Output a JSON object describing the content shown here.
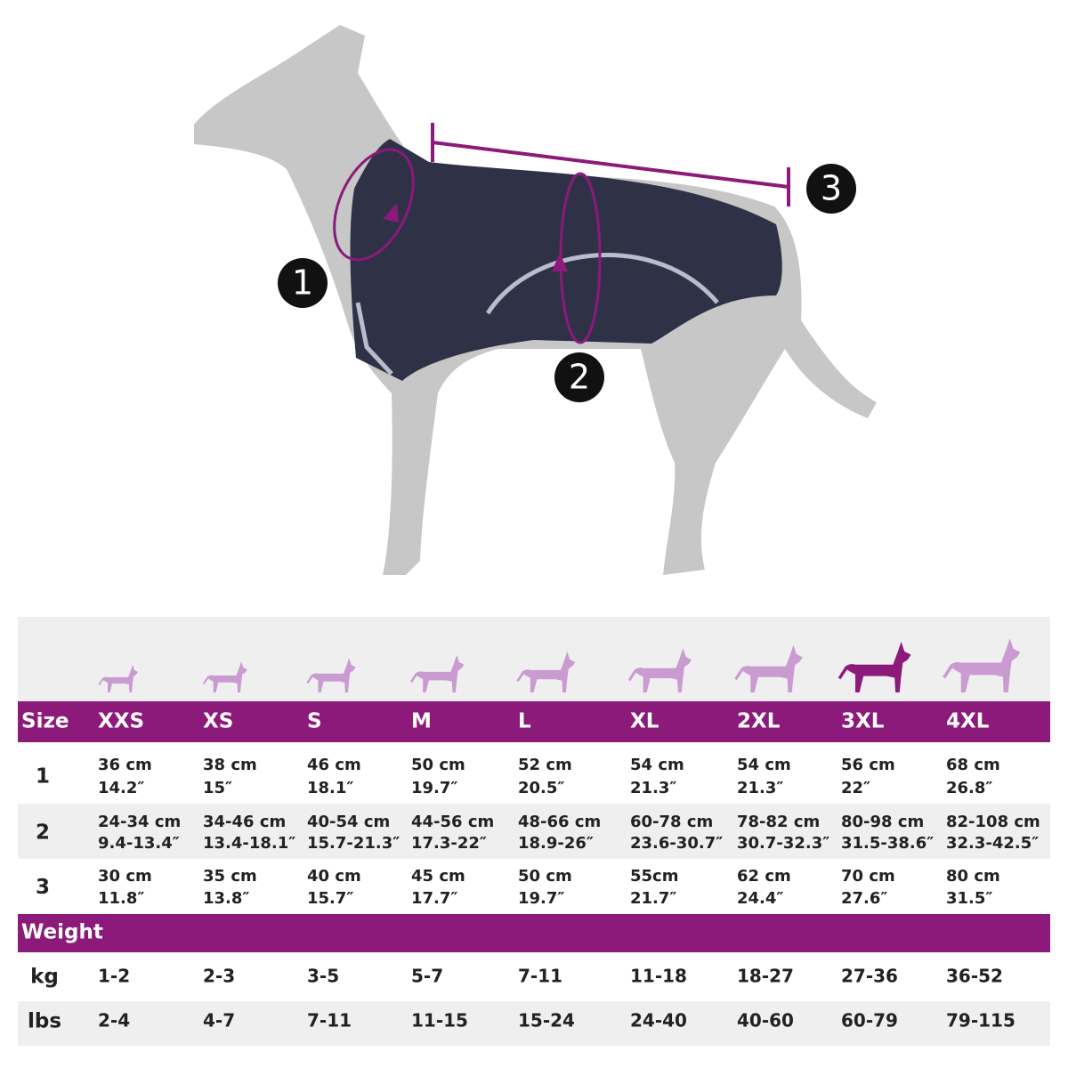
{
  "markers": [
    "1",
    "2",
    "3"
  ],
  "table": {
    "header": [
      "Size",
      "XXS",
      "XS",
      "S",
      "M",
      "L",
      "XL",
      "2XL",
      "3XL",
      "4XL"
    ],
    "rows": [
      {
        "label": "1",
        "cells": [
          [
            "36 cm",
            "14.2″"
          ],
          [
            "38 cm",
            "15″"
          ],
          [
            "46 cm",
            "18.1″"
          ],
          [
            "50 cm",
            "19.7″"
          ],
          [
            "52 cm",
            "20.5″"
          ],
          [
            "54 cm",
            "21.3″"
          ],
          [
            "54 cm",
            "21.3″"
          ],
          [
            "56 cm",
            "22″"
          ],
          [
            "68 cm",
            "26.8″"
          ]
        ]
      },
      {
        "label": "2",
        "cells": [
          [
            "24-34 cm",
            "9.4-13.4″"
          ],
          [
            "34-46 cm",
            "13.4-18.1″"
          ],
          [
            "40-54 cm",
            "15.7-21.3″"
          ],
          [
            "44-56 cm",
            "17.3-22″"
          ],
          [
            "48-66 cm",
            "18.9-26″"
          ],
          [
            "60-78 cm",
            "23.6-30.7″"
          ],
          [
            "78-82 cm",
            "30.7-32.3″"
          ],
          [
            "80-98 cm",
            "31.5-38.6″"
          ],
          [
            "82-108 cm",
            "32.3-42.5″"
          ]
        ]
      },
      {
        "label": "3",
        "cells": [
          [
            "30 cm",
            "11.8″"
          ],
          [
            "35 cm",
            "13.8″"
          ],
          [
            "40 cm",
            "15.7″"
          ],
          [
            "45 cm",
            "17.7″"
          ],
          [
            "50 cm",
            "19.7″"
          ],
          [
            "55cm",
            "21.7″"
          ],
          [
            "62 cm",
            "24.4″"
          ],
          [
            "70 cm",
            "27.6″"
          ],
          [
            "80 cm",
            "31.5″"
          ]
        ]
      }
    ],
    "weight_title": "Weight",
    "weight_rows": [
      {
        "label": "kg",
        "cells": [
          "1-2",
          "2-3",
          "3-5",
          "5-7",
          "7-11",
          "11-18",
          "18-27",
          "27-36",
          "36-52"
        ]
      },
      {
        "label": "lbs",
        "cells": [
          "2-4",
          "4-7",
          "7-11",
          "11-15",
          "15-24",
          "24-40",
          "40-60",
          "60-79",
          "79-115"
        ]
      }
    ]
  }
}
